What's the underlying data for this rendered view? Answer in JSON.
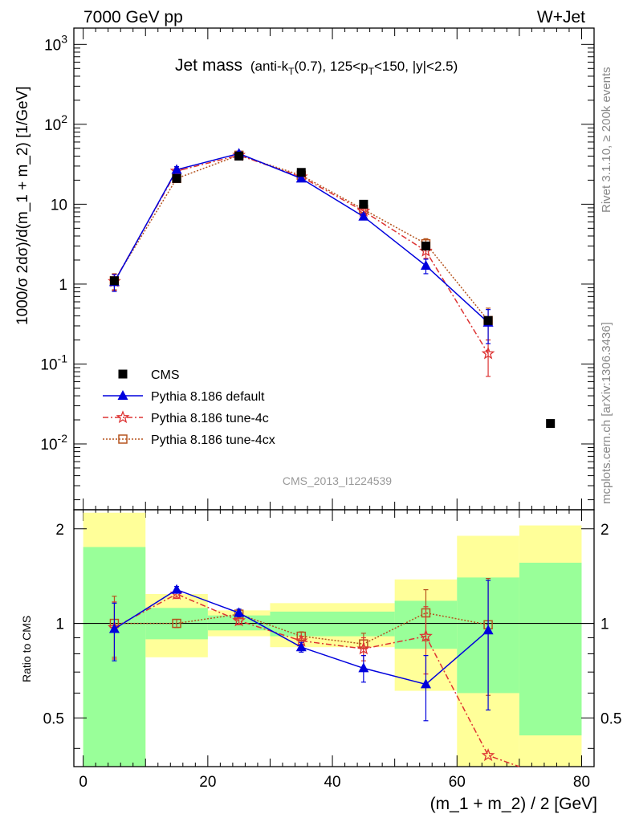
{
  "header": {
    "left": "7000 GeV pp",
    "right": "W+Jet"
  },
  "side_labels": {
    "rivet": "Rivet 3.1.10, ≥ 200k events",
    "mcplots": "mcplots.cern.ch [arXiv:1306.3436]"
  },
  "analysis_id": "CMS_2013_I1224539",
  "title": {
    "main": "Jet mass",
    "detail_a": "(anti-k",
    "sub_a": "T",
    "detail_b": "(0.7), 125<p",
    "sub_b": "T",
    "detail_c": "<150, |y|<2.5)"
  },
  "legend": [
    {
      "label": "CMS",
      "marker": "square",
      "color": "#000000"
    },
    {
      "label": "Pythia 8.186 default",
      "marker": "triangle",
      "color": "#0000dd"
    },
    {
      "label": "Pythia 8.186 tune-4c",
      "marker": "star",
      "color": "#dd3333"
    },
    {
      "label": "Pythia 8.186 tune-4cx",
      "marker": "open-square",
      "color": "#b5541f"
    }
  ],
  "colors": {
    "band_inner": "#99ff99",
    "band_outer": "#ffff99"
  },
  "chart_data": [
    {
      "type": "scatter",
      "panel": "main",
      "ylabel": "1000/σ 2dσ)/d(m_1 + m_2) [1/GeV]",
      "yscale": "log",
      "ylim": [
        0.0015,
        1600
      ],
      "xlim": [
        -1.5,
        82
      ],
      "y_tick_labels": [
        "10^3",
        "10^2",
        "10",
        "1",
        "10^-1",
        "10^-2"
      ],
      "series": [
        {
          "name": "CMS",
          "x": [
            5,
            15,
            25,
            35,
            45,
            55,
            65,
            75
          ],
          "y": [
            1.1,
            21,
            40,
            25,
            10,
            3.0,
            0.35,
            0.018
          ]
        },
        {
          "name": "Pythia 8.186 default",
          "x": [
            5,
            15,
            25,
            35,
            45,
            55,
            65
          ],
          "y": [
            1.06,
            27,
            43,
            21,
            7.0,
            1.7,
            0.33
          ],
          "yerr": [
            0.25,
            2.5,
            3,
            1.5,
            0.6,
            0.35,
            0.15
          ]
        },
        {
          "name": "Pythia 8.186 tune-4c",
          "x": [
            5,
            15,
            25,
            35,
            45,
            55,
            65
          ],
          "y": [
            1.08,
            26,
            41,
            22,
            8.2,
            2.6,
            0.135
          ],
          "yerr": [
            0.25,
            2.5,
            3,
            1.5,
            0.7,
            0.5,
            0.065
          ]
        },
        {
          "name": "Pythia 8.186 tune-4cx",
          "x": [
            5,
            15,
            25,
            35,
            45,
            55,
            65
          ],
          "y": [
            1.1,
            21,
            41,
            23,
            8.6,
            3.2,
            0.35
          ],
          "yerr": [
            0.25,
            2,
            3,
            1.5,
            0.7,
            0.5,
            0.15
          ]
        }
      ]
    },
    {
      "type": "scatter",
      "panel": "ratio",
      "xlabel": "(m_1 + m_2) / 2 [GeV]",
      "ylabel": "Ratio to CMS",
      "ylim": [
        0.35,
        2.3
      ],
      "xlim": [
        -1.5,
        82
      ],
      "x_ticks": [
        0,
        20,
        40,
        60,
        80
      ],
      "y_ticks": [
        0.5,
        1,
        2
      ],
      "reference_line": 1,
      "bands": [
        {
          "x0": 0,
          "x1": 10,
          "inner": [
            0.3,
            1.75
          ],
          "outer": [
            0.3,
            2.25
          ]
        },
        {
          "x0": 10,
          "x1": 20,
          "inner": [
            0.89,
            1.12
          ],
          "outer": [
            0.78,
            1.24
          ]
        },
        {
          "x0": 20,
          "x1": 30,
          "inner": [
            0.95,
            1.06
          ],
          "outer": [
            0.91,
            1.1
          ]
        },
        {
          "x0": 30,
          "x1": 50,
          "inner": [
            0.91,
            1.09
          ],
          "outer": [
            0.84,
            1.16
          ]
        },
        {
          "x0": 50,
          "x1": 60,
          "inner": [
            0.83,
            1.18
          ],
          "outer": [
            0.61,
            1.38
          ]
        },
        {
          "x0": 60,
          "x1": 70,
          "inner": [
            0.6,
            1.4
          ],
          "outer": [
            0.3,
            1.9
          ]
        },
        {
          "x0": 70,
          "x1": 80,
          "inner": [
            0.44,
            1.56
          ],
          "outer": [
            0.3,
            2.05
          ]
        }
      ],
      "series": [
        {
          "name": "Pythia 8.186 default",
          "x": [
            5,
            15,
            25,
            35,
            45,
            55,
            65
          ],
          "y": [
            0.96,
            1.28,
            1.08,
            0.84,
            0.72,
            0.64,
            0.95
          ],
          "yerr": [
            0.2,
            0.03,
            0.03,
            0.03,
            0.07,
            0.15,
            0.42
          ]
        },
        {
          "name": "Pythia 8.186 tune-4c",
          "x": [
            5,
            15,
            25,
            35,
            45,
            55,
            65,
            70
          ],
          "y": [
            0.97,
            1.24,
            1.02,
            0.88,
            0.83,
            0.91,
            0.38,
            0.3
          ],
          "yerr": [
            0.2,
            0.04,
            0.03,
            0.03,
            0.07,
            0.22,
            0.0,
            0.0
          ]
        },
        {
          "name": "Pythia 8.186 tune-4cx",
          "x": [
            5,
            15,
            25,
            35,
            45,
            55,
            65
          ],
          "y": [
            1.0,
            1.0,
            1.07,
            0.91,
            0.86,
            1.08,
            0.99
          ],
          "yerr": [
            0.22,
            0.03,
            0.03,
            0.03,
            0.07,
            0.2,
            0.4
          ]
        }
      ]
    }
  ]
}
